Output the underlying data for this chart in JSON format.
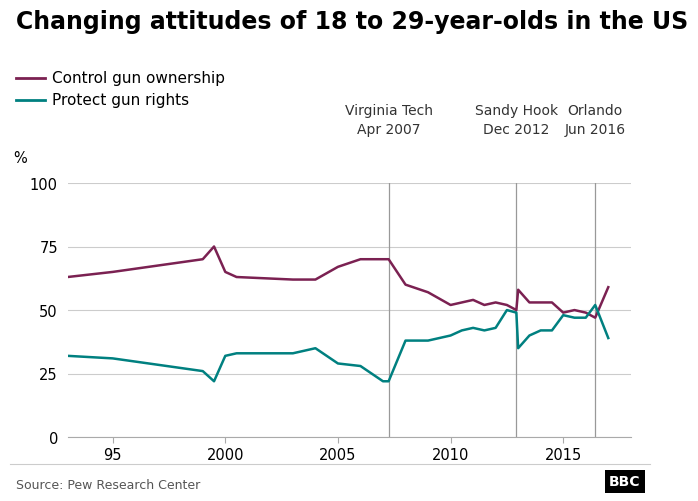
{
  "title": "Changing attitudes of 18 to 29-year-olds in the US",
  "ylabel": "%",
  "source": "Source: Pew Research Center",
  "bbc_logo": "BBC",
  "control_color": "#7b2152",
  "protect_color": "#008080",
  "legend_control": "Control gun ownership",
  "legend_protect": "Protect gun rights",
  "vlines": [
    2007.25,
    2012.92,
    2016.42
  ],
  "vline_labels": [
    [
      "Virginia Tech",
      "Apr 2007"
    ],
    [
      "Sandy Hook",
      "Dec 2012"
    ],
    [
      "Orlando",
      "Jun 2016"
    ]
  ],
  "control_x": [
    1993,
    1995,
    1999,
    1999.5,
    2000,
    2000.5,
    2003,
    2004,
    2005,
    2006,
    2007,
    2007.25,
    2008,
    2009,
    2010,
    2010.5,
    2011,
    2011.5,
    2012,
    2012.5,
    2012.92,
    2013,
    2013.5,
    2014,
    2014.5,
    2015,
    2015.5,
    2016,
    2016.42,
    2017
  ],
  "control_y": [
    63,
    65,
    70,
    75,
    65,
    63,
    62,
    62,
    67,
    70,
    70,
    70,
    60,
    57,
    52,
    53,
    54,
    52,
    53,
    52,
    50,
    58,
    53,
    53,
    53,
    49,
    50,
    49,
    47,
    59
  ],
  "protect_x": [
    1993,
    1995,
    1999,
    1999.5,
    2000,
    2000.5,
    2003,
    2004,
    2005,
    2006,
    2007,
    2007.25,
    2008,
    2009,
    2010,
    2010.5,
    2011,
    2011.5,
    2012,
    2012.5,
    2012.92,
    2013,
    2013.5,
    2014,
    2014.5,
    2015,
    2015.5,
    2016,
    2016.42,
    2017
  ],
  "protect_y": [
    32,
    31,
    26,
    22,
    32,
    33,
    33,
    35,
    29,
    28,
    22,
    22,
    38,
    38,
    40,
    42,
    43,
    42,
    43,
    50,
    49,
    35,
    40,
    42,
    42,
    48,
    47,
    47,
    52,
    39
  ],
  "xlim": [
    1993,
    2018
  ],
  "ylim": [
    0,
    100
  ],
  "yticks": [
    0,
    25,
    50,
    75,
    100
  ],
  "xticks": [
    1995,
    2000,
    2005,
    2010,
    2015
  ],
  "xticklabels": [
    "95",
    "2000",
    "2005",
    "2010",
    "2015"
  ],
  "background_color": "#ffffff",
  "grid_color": "#cccccc",
  "title_fontsize": 17,
  "legend_fontsize": 11,
  "tick_fontsize": 10.5,
  "annotation_fontsize": 10,
  "source_fontsize": 9
}
